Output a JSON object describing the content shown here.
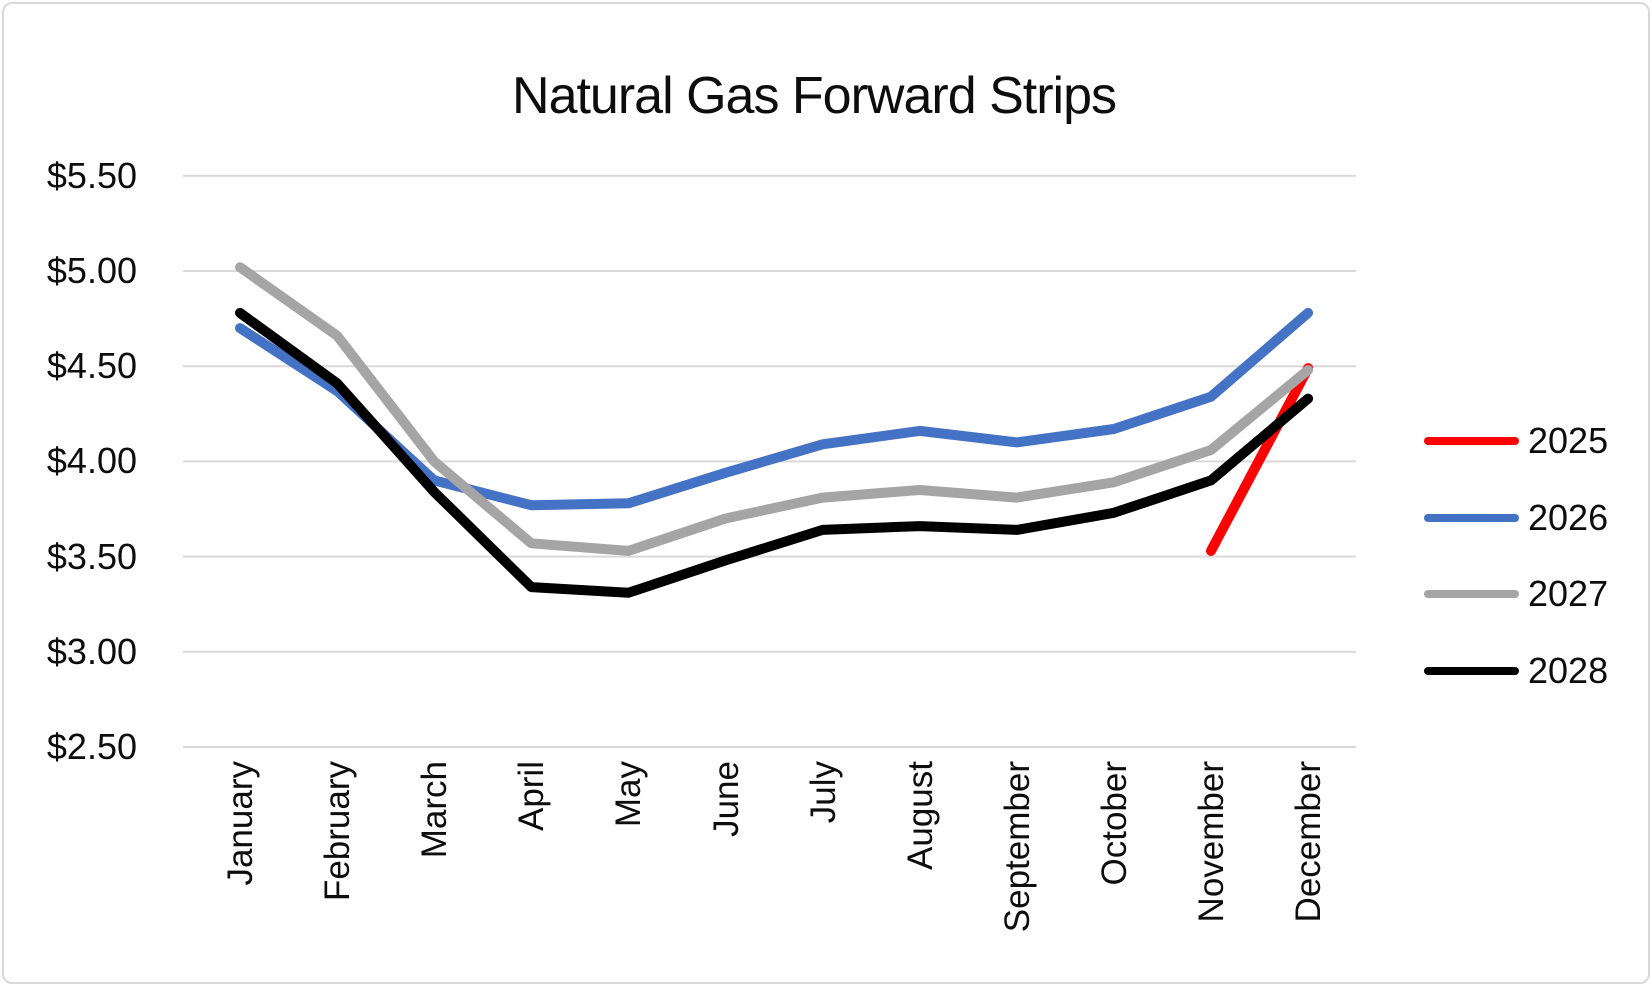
{
  "window": {
    "background_color": "#FFFFFF",
    "frame_border_color": "#D9D9D9"
  },
  "chart_data": {
    "type": "line",
    "title": "Natural Gas Forward Strips",
    "categories": [
      "January",
      "February",
      "March",
      "April",
      "May",
      "June",
      "July",
      "August",
      "September",
      "October",
      "November",
      "December"
    ],
    "y_axis": {
      "tick_labels": [
        "$5.50",
        "$5.00",
        "$4.50",
        "$4.00",
        "$3.50",
        "$3.00",
        "$2.50"
      ],
      "min": 2.5,
      "max": 5.5,
      "step": 0.5,
      "format": "$#.00"
    },
    "series": [
      {
        "name": "2025",
        "color": "#FF0000",
        "values": [
          null,
          null,
          null,
          null,
          null,
          null,
          null,
          null,
          null,
          null,
          3.53,
          4.49
        ]
      },
      {
        "name": "2026",
        "color": "#4472C4",
        "values": [
          4.7,
          4.37,
          3.9,
          3.77,
          3.78,
          3.94,
          4.09,
          4.16,
          4.1,
          4.17,
          4.34,
          4.78
        ]
      },
      {
        "name": "2027",
        "color": "#A5A5A5",
        "values": [
          5.02,
          4.66,
          4.0,
          3.57,
          3.53,
          3.7,
          3.81,
          3.85,
          3.81,
          3.89,
          4.06,
          4.48
        ]
      },
      {
        "name": "2028",
        "color": "#000000",
        "values": [
          4.78,
          4.41,
          3.84,
          3.34,
          3.31,
          3.48,
          3.64,
          3.66,
          3.64,
          3.73,
          3.9,
          4.33
        ]
      }
    ],
    "legend": {
      "position": "right",
      "entries": [
        "2025",
        "2026",
        "2027",
        "2028"
      ]
    },
    "grid": true,
    "gridline_color": "#D9D9D9",
    "line_width": 10
  }
}
